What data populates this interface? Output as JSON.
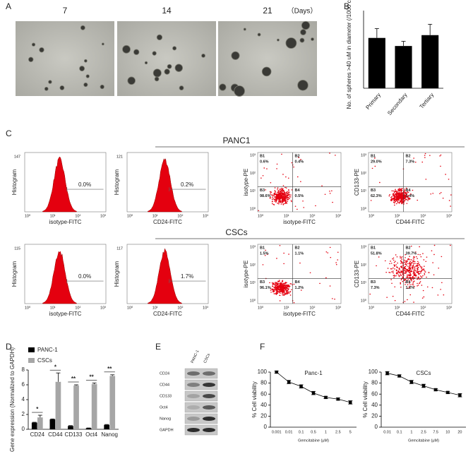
{
  "panel_labels": [
    "A",
    "B",
    "C",
    "D",
    "E",
    "F"
  ],
  "panel_a": {
    "days": [
      "7",
      "14",
      "21"
    ],
    "unit": "（Days）"
  },
  "panel_c": {
    "log_ticks": [
      "10⁰",
      "10¹",
      "10²",
      "10³"
    ],
    "rows": [
      {
        "title": "PANC1",
        "histograms": [
          {
            "y_label": "Histogram",
            "x_label": "isotype-FITC",
            "y_max": "147",
            "gate": "0.0%"
          },
          {
            "y_label": "Histogram",
            "x_label": "CD24-FITC",
            "y_max": "121",
            "gate": "0.2%"
          }
        ],
        "scatters": [
          {
            "y_label": "isotype-PE",
            "x_label": "isotype-FITC",
            "quadrants": [
              {
                "name": "B1",
                "value": "0.6%"
              },
              {
                "name": "B2",
                "value": "0.4%"
              },
              {
                "name": "B3",
                "value": "98.6%"
              },
              {
                "name": "B4",
                "value": "0.5%"
              }
            ]
          },
          {
            "y_label": "CD133-PE",
            "x_label": "CD44-FITC",
            "quadrants": [
              {
                "name": "B1",
                "value": "29.0%"
              },
              {
                "name": "B2",
                "value": "7.3%"
              },
              {
                "name": "B3",
                "value": "62.3%"
              },
              {
                "name": "B4",
                "value": "1.4%"
              }
            ]
          }
        ]
      },
      {
        "title": "CSCs",
        "histograms": [
          {
            "y_label": "Histogram",
            "x_label": "isotype-FITC",
            "y_max": "115",
            "gate": "0.0%"
          },
          {
            "y_label": "Histogram",
            "x_label": "CD24-FITC",
            "y_max": "117",
            "gate": "1.7%"
          }
        ],
        "scatters": [
          {
            "y_label": "isotype-PE",
            "x_label": "isotype-FITC",
            "quadrants": [
              {
                "name": "B1",
                "value": "1.5%"
              },
              {
                "name": "B2",
                "value": "1.1%"
              },
              {
                "name": "B3",
                "value": "96.1%"
              },
              {
                "name": "B4",
                "value": "1.2%"
              }
            ]
          },
          {
            "y_label": "CD133-PE",
            "x_label": "CD44-FITC",
            "quadrants": [
              {
                "name": "B1",
                "value": "51.8%"
              },
              {
                "name": "B2",
                "value": "39.7%"
              },
              {
                "name": "B3",
                "value": "7.3%"
              },
              {
                "name": "B4",
                "value": "1.2%"
              }
            ]
          }
        ]
      }
    ]
  },
  "panel_e": {
    "columns": [
      "PANC-1",
      "CSCs"
    ],
    "rows": [
      "CD24",
      "CD44",
      "CD133",
      "Oct4",
      "Nanog",
      "GAPDH"
    ]
  },
  "chart_data": [
    {
      "type": "bar",
      "y_label": "No. of spheres >40 uM in diameter (/1000 cells)",
      "categories": [
        "Primary",
        "Secondary",
        "Tertiary"
      ],
      "values": [
        162,
        136,
        171
      ],
      "errors": [
        30,
        15,
        35
      ],
      "color": "#000000",
      "ylim": [
        0,
        250
      ]
    },
    {
      "type": "grouped_bar",
      "y_label": "Gene expression (Normalized to GAPDH)",
      "categories": [
        "CD24",
        "CD44",
        "CD133",
        "Oct4",
        "Nanog"
      ],
      "series": [
        {
          "name": "PANC-1",
          "color": "#000000",
          "values": [
            0.9,
            1.35,
            0.45,
            0.15,
            0.6
          ],
          "errors": [
            0.05,
            0.05,
            0.05,
            0.03,
            0.05
          ]
        },
        {
          "name": "CSCs",
          "color": "#a6a6a6",
          "values": [
            1.6,
            6.4,
            5.9,
            6.1,
            7.2
          ],
          "errors": [
            0.3,
            1.2,
            0.1,
            0.15,
            0.15
          ]
        }
      ],
      "significance": [
        "*",
        "*",
        "**",
        "**",
        "**"
      ],
      "ylim": [
        0,
        8
      ],
      "yticks": [
        0,
        2,
        4,
        6,
        8
      ]
    },
    {
      "type": "line",
      "title": "Panc-1",
      "x_label": "Gemcitabine (μM)",
      "y_label": "% Cell viability",
      "categories": [
        "0.001",
        "0.01",
        "0.1",
        "0.5",
        "1",
        "2.5",
        "5"
      ],
      "values": [
        100,
        82,
        74,
        62,
        54,
        51,
        45
      ],
      "errors": [
        2,
        3,
        3,
        3,
        2,
        2,
        3
      ],
      "color": "#000000",
      "ylim": [
        0,
        100
      ],
      "yticks": [
        0,
        20,
        40,
        60,
        80,
        100
      ]
    },
    {
      "type": "line",
      "title": "CSCs",
      "x_label": "Gemcitabine (μM)",
      "y_label": "% Cell viability",
      "categories": [
        "0.01",
        "0.1",
        "1",
        "2.5",
        "7.5",
        "10",
        "20"
      ],
      "values": [
        98,
        93,
        82,
        75,
        68,
        63,
        58
      ],
      "errors": [
        3,
        2,
        3,
        3,
        2,
        2,
        3
      ],
      "color": "#000000",
      "ylim": [
        0,
        100
      ],
      "yticks": [
        0,
        20,
        40,
        60,
        80,
        100
      ]
    }
  ]
}
